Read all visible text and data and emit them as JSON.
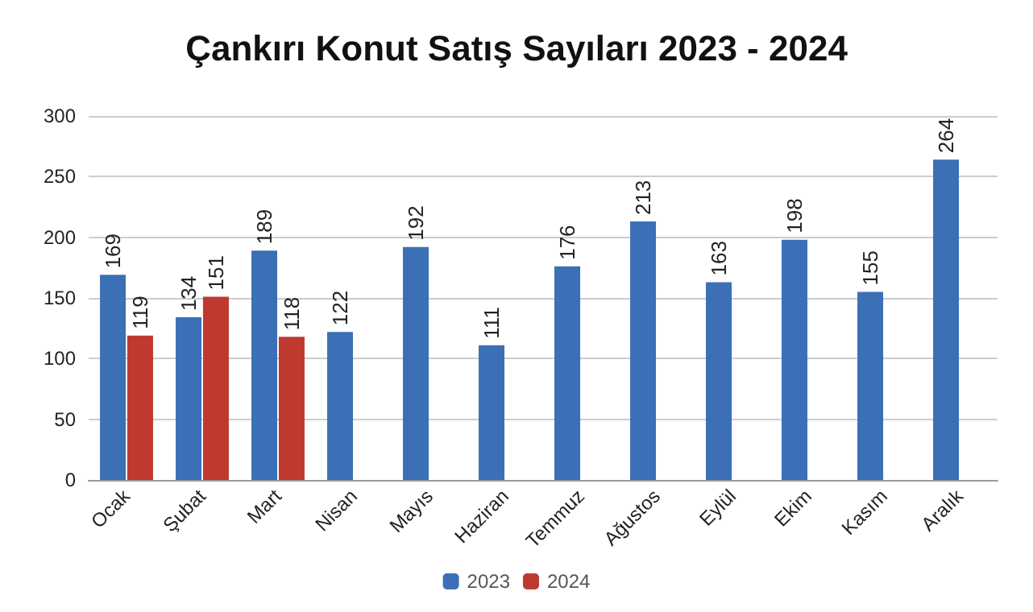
{
  "chart_data": {
    "type": "bar",
    "title": "Çankırı Konut Satış Sayıları 2023 - 2024",
    "categories": [
      "Ocak",
      "Şubat",
      "Mart",
      "Nisan",
      "Mayıs",
      "Haziran",
      "Temmuz",
      "Ağustos",
      "Eylül",
      "Ekim",
      "Kasım",
      "Aralık"
    ],
    "series": [
      {
        "name": "2023",
        "color": "#3b6fb6",
        "values": [
          169,
          134,
          189,
          122,
          192,
          111,
          176,
          213,
          163,
          198,
          155,
          264
        ]
      },
      {
        "name": "2024",
        "color": "#c0392f",
        "values": [
          119,
          151,
          118,
          null,
          null,
          null,
          null,
          null,
          null,
          null,
          null,
          null
        ]
      }
    ],
    "ylim": [
      0,
      300
    ],
    "yticks": [
      0,
      50,
      100,
      150,
      200,
      250,
      300
    ],
    "grid": "y",
    "legend": "bottom",
    "data_labels": true
  }
}
